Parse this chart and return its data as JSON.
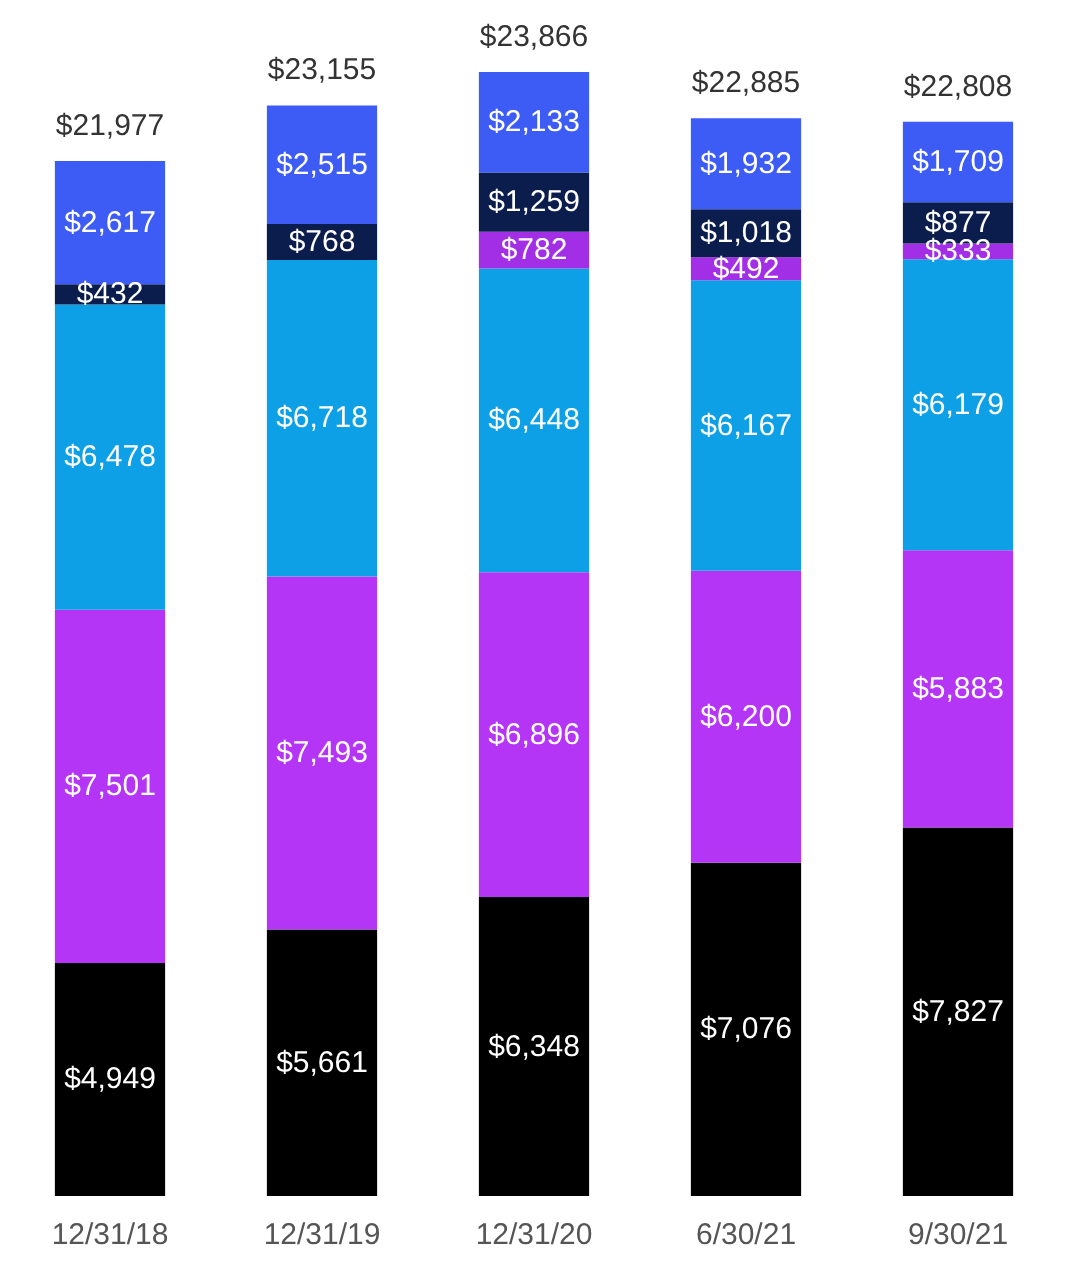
{
  "chart_data": {
    "type": "bar",
    "stacked": true,
    "categories": [
      "12/31/18",
      "12/31/19",
      "12/31/20",
      "6/30/21",
      "9/30/21"
    ],
    "series": [
      {
        "color": "#000000",
        "values": [
          4949,
          5661,
          6348,
          7076,
          7827
        ],
        "value_labels": [
          "$4,949",
          "$5,661",
          "$6,348",
          "$7,076",
          "$7,827"
        ]
      },
      {
        "color": "#b535f6",
        "values": [
          7501,
          7493,
          6896,
          6200,
          5883
        ],
        "value_labels": [
          "$7,501",
          "$7,493",
          "$6,896",
          "$6,200",
          "$5,883"
        ]
      },
      {
        "color": "#0ea0e6",
        "values": [
          6478,
          6718,
          6448,
          6167,
          6179
        ],
        "value_labels": [
          "$6,478",
          "$6,718",
          "$6,448",
          "$6,167",
          "$6,179"
        ]
      },
      {
        "color": "#a22ee6",
        "values": [
          null,
          null,
          782,
          492,
          333
        ],
        "value_labels": [
          null,
          null,
          "$782",
          "$492",
          "$333"
        ]
      },
      {
        "color": "#0b1d4d",
        "values": [
          432,
          768,
          1259,
          1018,
          877
        ],
        "value_labels": [
          "$432",
          "$768",
          "$1,259",
          "$1,018",
          "$877"
        ]
      },
      {
        "color": "#3d5cf6",
        "values": [
          2617,
          2515,
          2133,
          1932,
          1709
        ],
        "value_labels": [
          "$2,617",
          "$2,515",
          "$2,133",
          "$1,932",
          "$1,709"
        ]
      }
    ],
    "totals": [
      "$21,977",
      "$23,155",
      "$23,866",
      "$22,885",
      "$22,808"
    ]
  }
}
